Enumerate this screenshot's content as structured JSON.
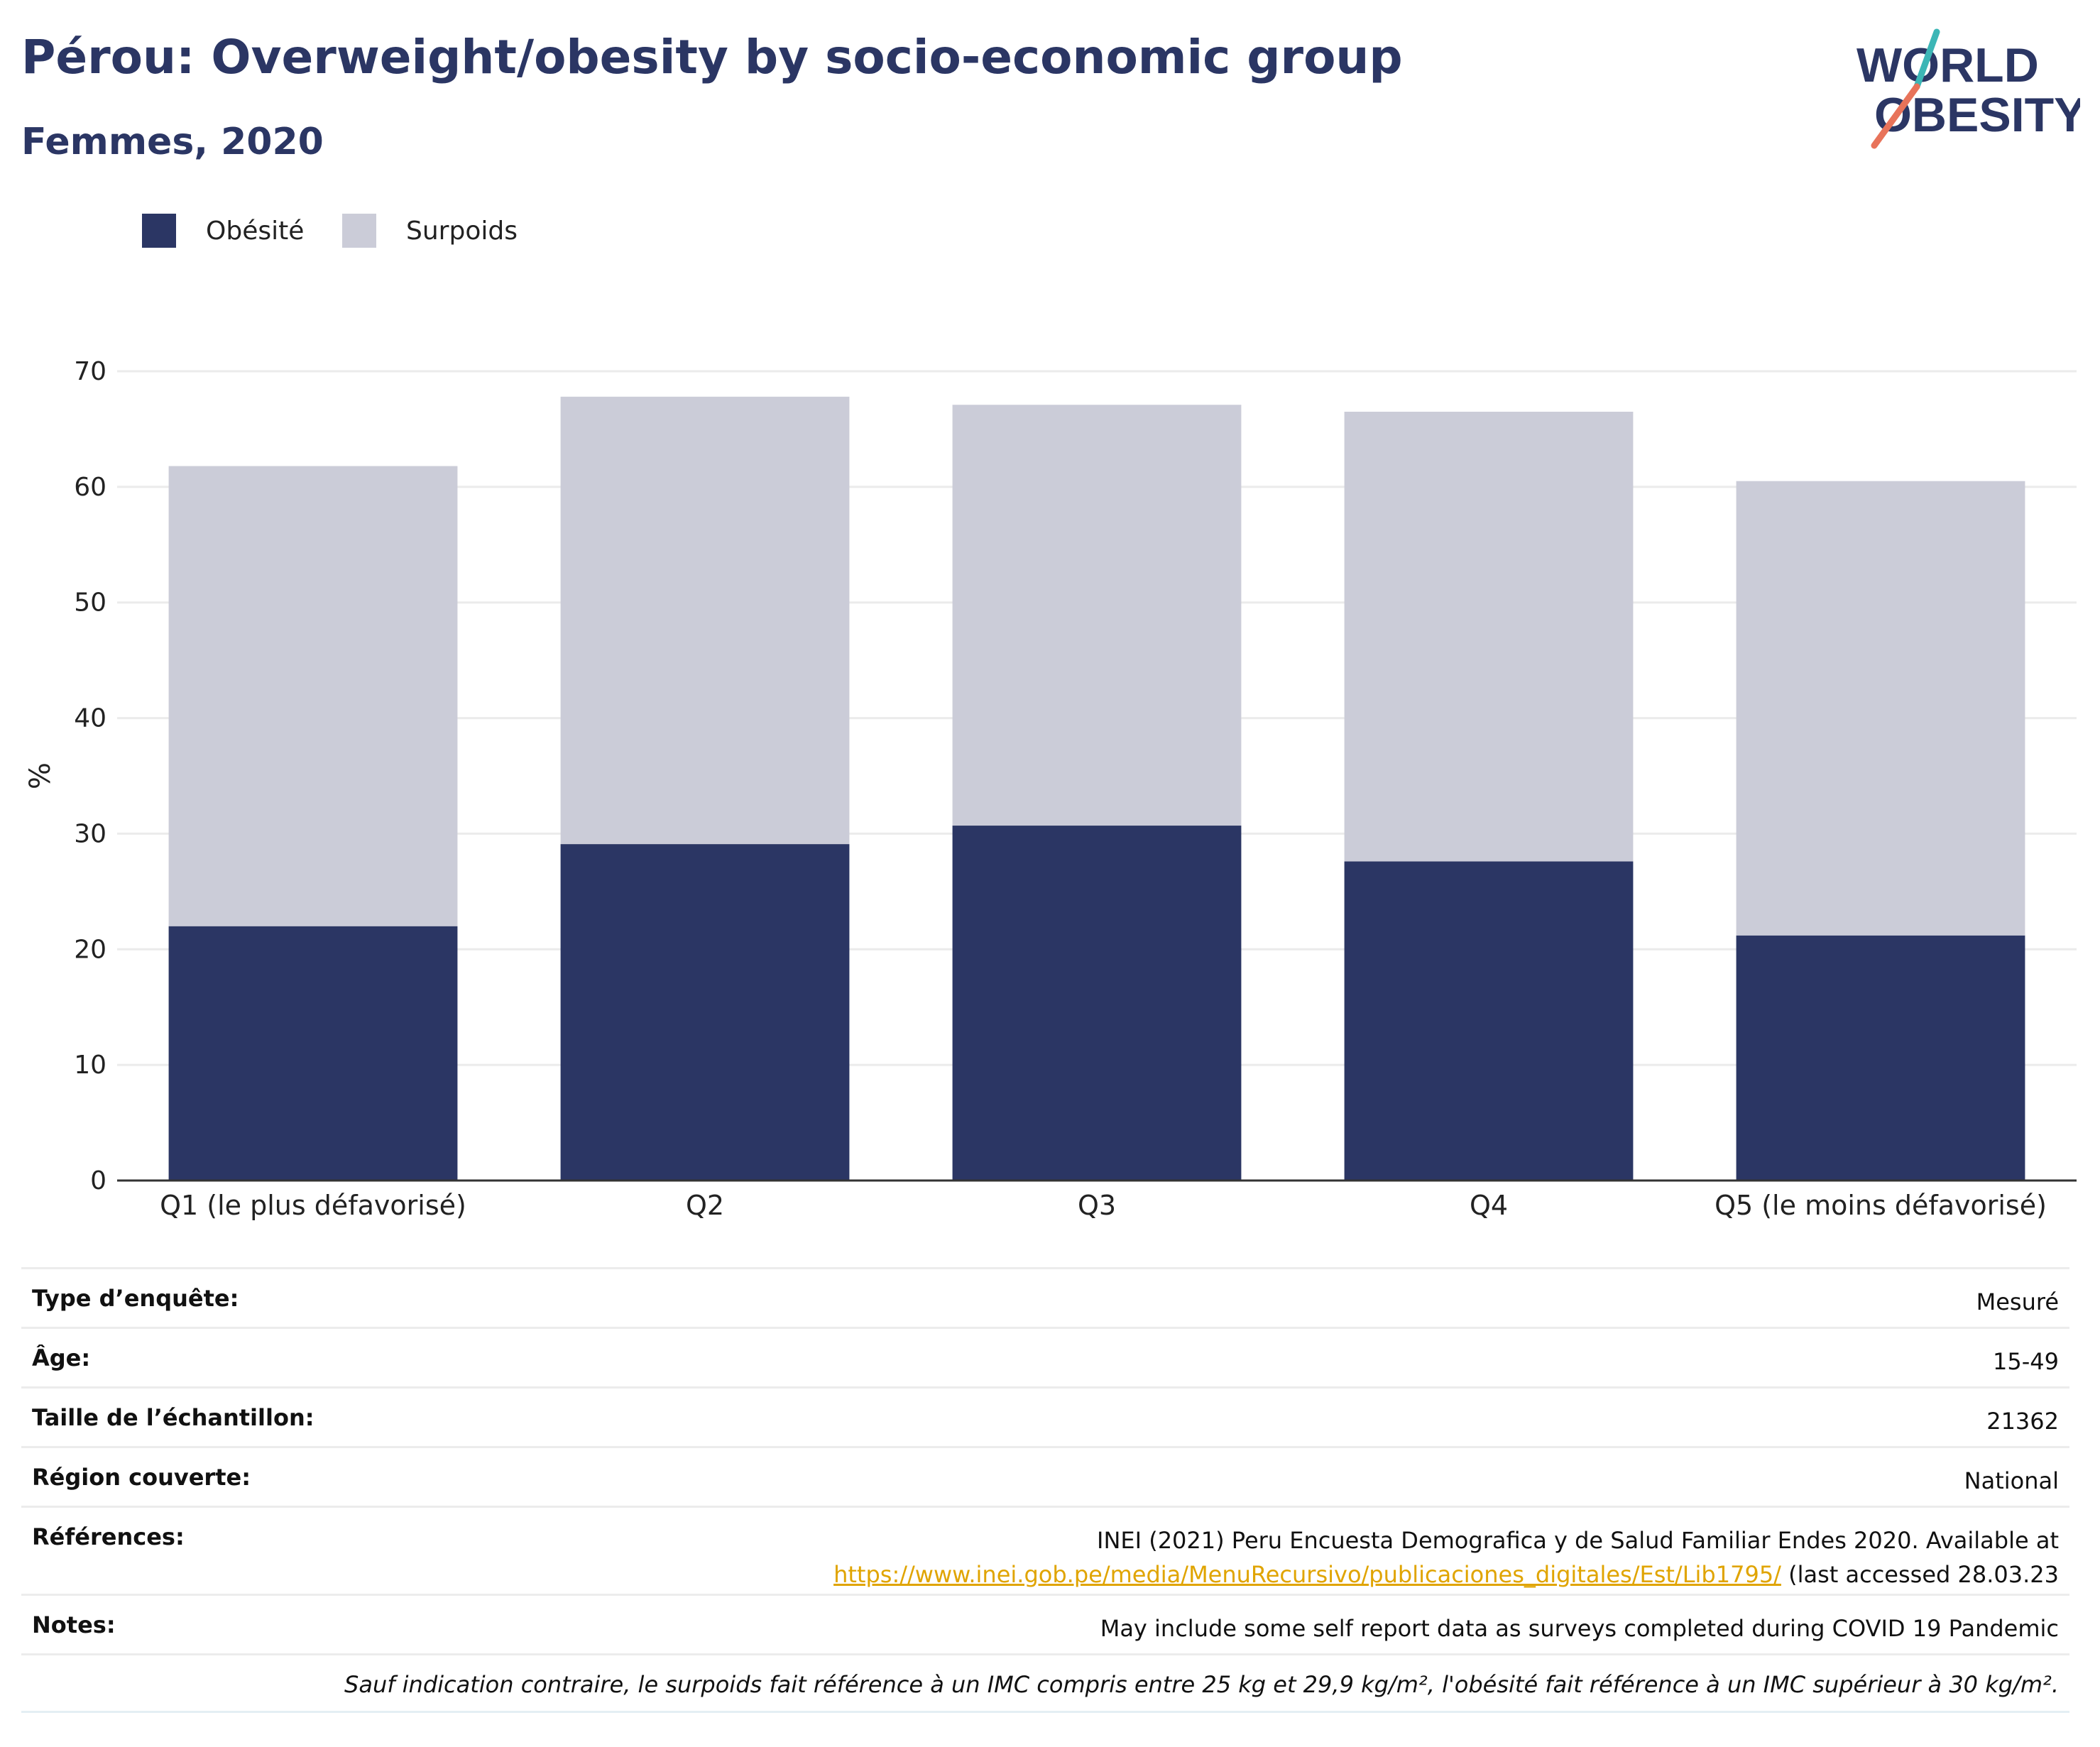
{
  "header": {
    "title": "Pérou: Overweight/obesity by socio-economic group",
    "subtitle": "Femmes, 2020"
  },
  "logo": {
    "line1": "WORLD",
    "line2": "OBESITY"
  },
  "colors": {
    "obesity": "#2b3664",
    "overweight": "#cbccd8",
    "title": "#2b3664",
    "link": "#e0a400",
    "logo_teal": "#3cb6b6",
    "logo_coral": "#e8735a"
  },
  "legend": [
    {
      "label": "Obésité",
      "color": "#2b3664"
    },
    {
      "label": "Surpoids",
      "color": "#cbccd8"
    }
  ],
  "chart_data": {
    "type": "bar",
    "stacked": true,
    "categories": [
      "Q1 (le plus défavorisé)",
      "Q2",
      "Q3",
      "Q4",
      "Q5 (le moins défavorisé)"
    ],
    "series": [
      {
        "name": "Obésité",
        "values": [
          22.0,
          29.1,
          30.7,
          27.6,
          21.2
        ]
      },
      {
        "name": "Surpoids",
        "values": [
          39.8,
          38.7,
          36.4,
          38.9,
          39.3
        ]
      }
    ],
    "totals": [
      61.8,
      67.8,
      67.1,
      66.5,
      60.5
    ],
    "ylabel": "%",
    "ylim": [
      0,
      70
    ],
    "yticks": [
      0,
      10,
      20,
      30,
      40,
      50,
      60,
      70
    ],
    "grid": true,
    "legend_position": "top-left"
  },
  "meta": {
    "survey_type": {
      "label": "Type d’enquête:",
      "value": "Mesuré"
    },
    "age": {
      "label": "Âge:",
      "value": "15-49"
    },
    "sample_size": {
      "label": "Taille de l’échantillon:",
      "value": "21362"
    },
    "region": {
      "label": "Région couverte:",
      "value": "National"
    },
    "references": {
      "label": "Références:",
      "line1": "INEI (2021) Peru Encuesta Demografica y de Salud Familiar Endes 2020. Available at",
      "link": "https://www.inei.gob.pe/media/MenuRecursivo/publicaciones_digitales/Est/Lib1795/",
      "line2_suffix": " (last accessed 28.03.23"
    },
    "notes": {
      "label": "Notes:",
      "value": "May include some self report data as surveys completed during COVID 19 Pandemic"
    },
    "footnote": "Sauf indication contraire, le surpoids fait référence à un IMC compris entre 25 kg et 29,9 kg/m², l'obésité fait référence à un IMC supérieur à 30 kg/m²."
  }
}
